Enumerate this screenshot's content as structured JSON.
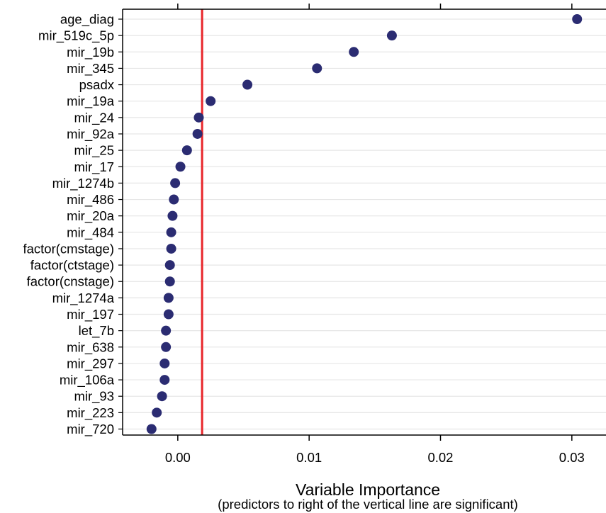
{
  "chart_data": {
    "type": "scatter",
    "xlabel": "Variable Importance",
    "xsublabel": "(predictors to right of the vertical line are significant)",
    "xlim": [
      -0.0042,
      0.0326
    ],
    "xticks": [
      0.0,
      0.01,
      0.02,
      0.03
    ],
    "xtick_labels": [
      "0.00",
      "0.01",
      "0.02",
      "0.03"
    ],
    "threshold": 0.00185,
    "categories": [
      "age_diag",
      "mir_519c_5p",
      "mir_19b",
      "mir_345",
      "psadx",
      "mir_19a",
      "mir_24",
      "mir_92a",
      "mir_25",
      "mir_17",
      "mir_1274b",
      "mir_486",
      "mir_20a",
      "mir_484",
      "factor(cmstage)",
      "factor(ctstage)",
      "factor(cnstage)",
      "mir_1274a",
      "mir_197",
      "let_7b",
      "mir_638",
      "mir_297",
      "mir_106a",
      "mir_93",
      "mir_223",
      "mir_720"
    ],
    "values": [
      0.0304,
      0.0163,
      0.0134,
      0.0106,
      0.0053,
      0.0025,
      0.0016,
      0.0015,
      0.0007,
      0.0002,
      -0.0002,
      -0.0003,
      -0.0004,
      -0.0005,
      -0.0005,
      -0.0006,
      -0.0006,
      -0.0007,
      -0.0007,
      -0.0009,
      -0.0009,
      -0.001,
      -0.001,
      -0.0012,
      -0.0016,
      -0.002
    ],
    "grid": true,
    "colors": {
      "point": "#2b2c72",
      "threshold_line": "#e8262b",
      "grid": "#e6e6e6",
      "axis": "#000000"
    }
  }
}
